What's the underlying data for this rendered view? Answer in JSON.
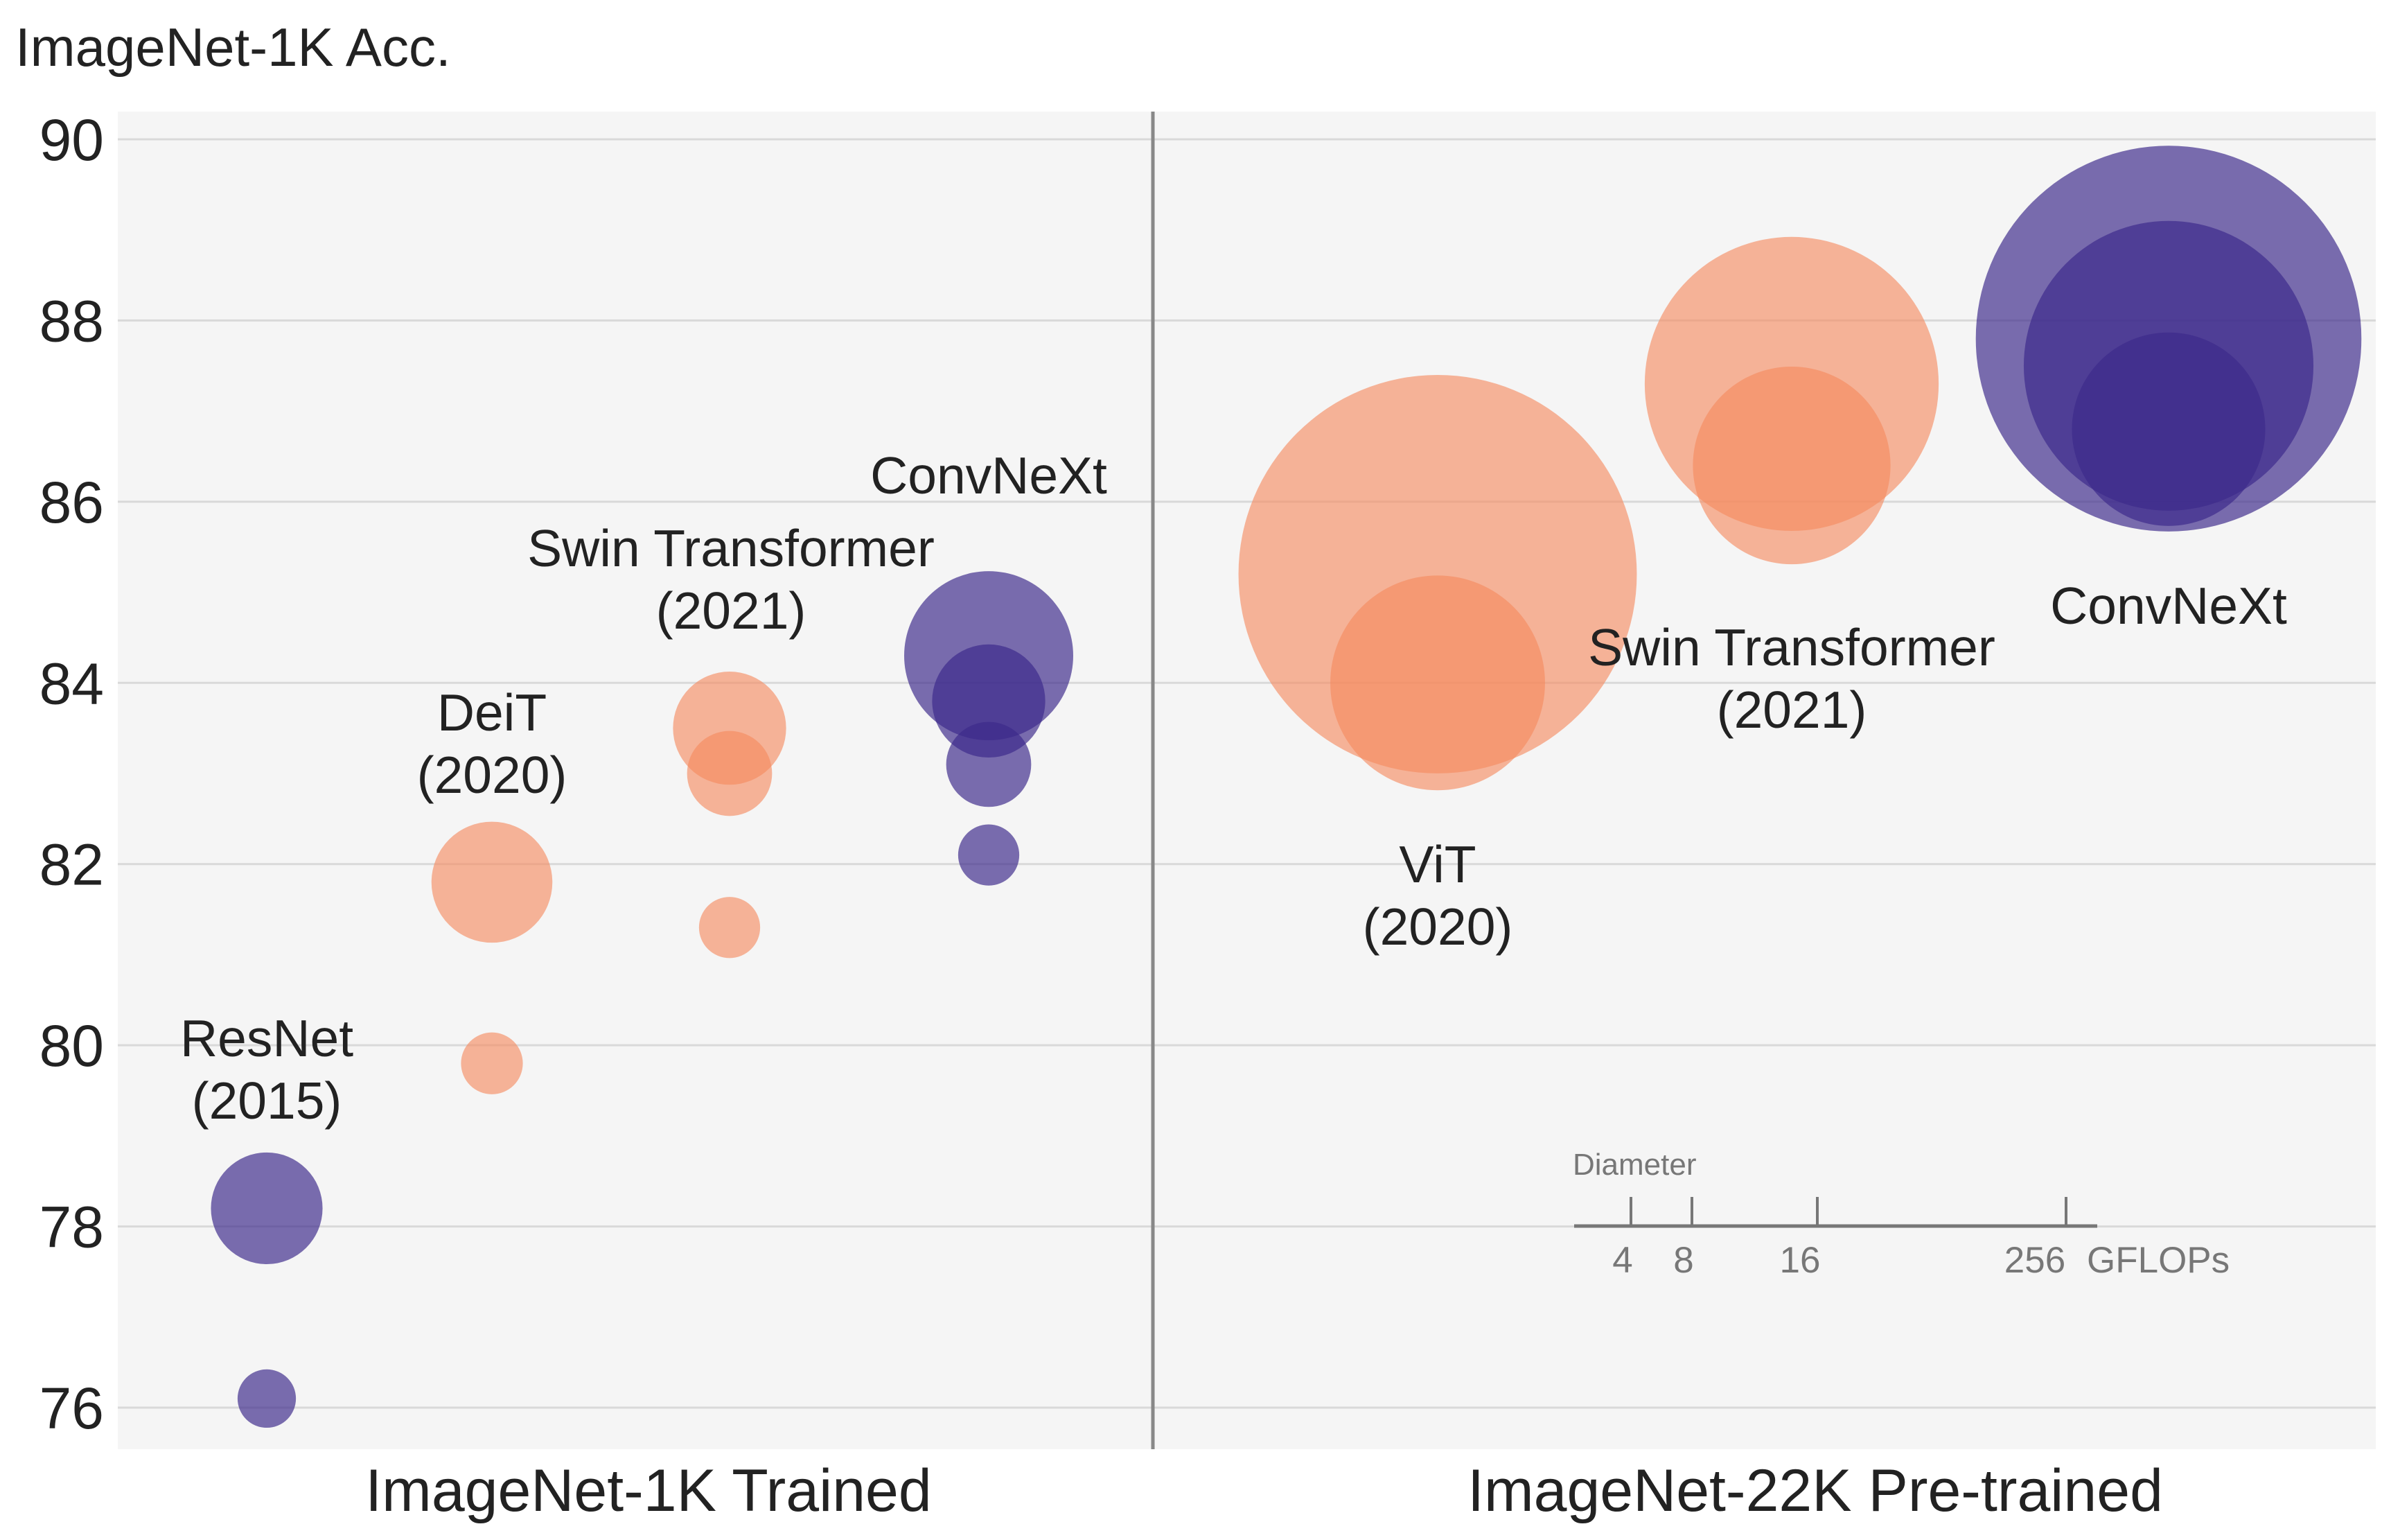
{
  "chart_data": {
    "type": "bubble-scatter",
    "title": "ImageNet-1K Acc.",
    "ylabel": "",
    "ylim": [
      75.5,
      90.3
    ],
    "yticks": [
      "76",
      "78",
      "80",
      "82",
      "84",
      "86",
      "88",
      "90"
    ],
    "grid": "horizontal",
    "categories": [
      "ImageNet-1K Trained",
      "ImageNet-22K Pre-trained"
    ],
    "colors": {
      "transformer": "#F5895E",
      "convnet": "#3D2A8A",
      "background": "#F5F5F5"
    },
    "groups": [
      {
        "label": "ResNet",
        "year": "(2015)",
        "category": 0,
        "slot": 0,
        "family": "convnet",
        "points": [
          {
            "acc": 78.2,
            "gflops": 15.0
          },
          {
            "acc": 76.1,
            "gflops": 4.1
          }
        ]
      },
      {
        "label": "DeiT",
        "year": "(2020)",
        "category": 0,
        "slot": 1,
        "family": "transformer",
        "points": [
          {
            "acc": 81.8,
            "gflops": 17.6
          },
          {
            "acc": 79.8,
            "gflops": 4.6
          }
        ]
      },
      {
        "label": "Swin Transformer",
        "year": "(2021)",
        "category": 0,
        "slot": 2,
        "family": "transformer",
        "points": [
          {
            "acc": 83.5,
            "gflops": 15.4
          },
          {
            "acc": 83.0,
            "gflops": 8.7
          },
          {
            "acc": 81.3,
            "gflops": 4.5
          }
        ]
      },
      {
        "label": "ConvNeXt",
        "year": "",
        "category": 0,
        "slot": 3,
        "family": "convnet",
        "points": [
          {
            "acc": 84.3,
            "gflops": 34.4
          },
          {
            "acc": 83.8,
            "gflops": 15.4
          },
          {
            "acc": 83.1,
            "gflops": 8.7
          },
          {
            "acc": 82.1,
            "gflops": 4.5
          }
        ]
      },
      {
        "label": "ViT",
        "year": "(2020)",
        "category": 1,
        "slot": 0,
        "family": "transformer",
        "points": [
          {
            "acc": 85.2,
            "gflops": 191
          },
          {
            "acc": 84.0,
            "gflops": 55.5
          }
        ]
      },
      {
        "label": "Swin Transformer",
        "year": "(2021)",
        "category": 1,
        "slot": 1,
        "family": "transformer",
        "points": [
          {
            "acc": 87.3,
            "gflops": 104
          },
          {
            "acc": 86.4,
            "gflops": 47
          }
        ]
      },
      {
        "label": "ConvNeXt",
        "year": "",
        "category": 1,
        "slot": 2,
        "family": "convnet",
        "points": [
          {
            "acc": 87.8,
            "gflops": 179
          },
          {
            "acc": 87.5,
            "gflops": 101
          },
          {
            "acc": 86.8,
            "gflops": 45
          }
        ]
      }
    ],
    "size_legend": {
      "title": "Diameter",
      "ticks": [
        "4",
        "8",
        "16",
        "256"
      ],
      "unit": "GFLOPs"
    }
  }
}
